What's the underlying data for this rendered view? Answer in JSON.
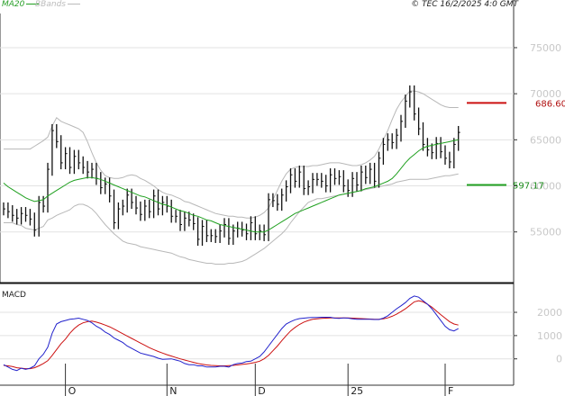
{
  "header": {
    "legend": [
      {
        "label": "MA20",
        "color": "#1fa01f"
      },
      {
        "label": "BBands",
        "color": "#bbbbbb"
      }
    ],
    "copyright": "© TEC 16/2/2025 4:0 GMT"
  },
  "chart_data": [
    {
      "type": "candlestick",
      "panel": "price",
      "ylim": [
        49500,
        79000
      ],
      "y_ticks": [
        55000,
        60000,
        65000,
        70000,
        75000
      ],
      "y_tick_labels": [
        "55000",
        "60000",
        "65000",
        "70000",
        "75000"
      ],
      "x_ticks": [
        {
          "label": "O",
          "index": 14
        },
        {
          "label": "N",
          "index": 37
        },
        {
          "label": "D",
          "index": 57
        },
        {
          "label": "25",
          "index": 78
        },
        {
          "label": "F",
          "index": 100
        }
      ],
      "grid": true,
      "series": [
        {
          "name": "MA20",
          "color": "#1fa01f"
        },
        {
          "name": "BBands",
          "color": "#bbbbbb"
        }
      ],
      "close": [
        57500,
        57200,
        56800,
        56500,
        57000,
        56800,
        56400,
        55200,
        58200,
        57800,
        61800,
        66000,
        64800,
        62500,
        63500,
        62000,
        63200,
        62500,
        62000,
        61500,
        61800,
        60800,
        59800,
        60200,
        58900,
        56000,
        57500,
        57800,
        59000,
        58200,
        57600,
        56900,
        57800,
        57200,
        58900,
        57500,
        58200,
        57800,
        56700,
        56700,
        55800,
        56500,
        56300,
        55900,
        54200,
        55600,
        54600,
        54600,
        54500,
        55100,
        55800,
        54300,
        55100,
        55400,
        55200,
        54800,
        56000,
        54800,
        55100,
        54700,
        58500,
        58400,
        58000,
        59000,
        59900,
        61200,
        60500,
        61500,
        59700,
        59900,
        60700,
        60700,
        60500,
        60000,
        61200,
        60800,
        61000,
        60000,
        59500,
        60800,
        60100,
        61500,
        60900,
        61800,
        60500,
        63000,
        64500,
        65000,
        64700,
        65500,
        67000,
        69200,
        70200,
        67800,
        66200,
        64500,
        63900,
        63600,
        64600,
        63700,
        63000,
        62600,
        64500,
        65800
      ],
      "ma20": [
        60300,
        59900,
        59600,
        59300,
        59000,
        58700,
        58500,
        58300,
        58400,
        58500,
        58900,
        59200,
        59500,
        59800,
        60100,
        60400,
        60600,
        60700,
        60800,
        60900,
        60900,
        60800,
        60700,
        60500,
        60300,
        60100,
        59900,
        59700,
        59500,
        59300,
        59100,
        58900,
        58800,
        58600,
        58400,
        58200,
        58000,
        57900,
        57700,
        57500,
        57300,
        57200,
        57000,
        56800,
        56700,
        56500,
        56300,
        56200,
        56000,
        55800,
        55700,
        55600,
        55500,
        55400,
        55300,
        55200,
        55100,
        55000,
        55000,
        55000,
        55200,
        55500,
        55800,
        56100,
        56400,
        56700,
        57000,
        57200,
        57400,
        57600,
        57800,
        58000,
        58200,
        58400,
        58600,
        58800,
        59000,
        59100,
        59200,
        59300,
        59400,
        59500,
        59700,
        59800,
        59900,
        60100,
        60300,
        60500,
        60800,
        61300,
        61900,
        62500,
        63000,
        63400,
        63800,
        64100,
        64300,
        64400,
        64500,
        64600,
        64700,
        64800,
        64900,
        65000
      ],
      "bb_upper": [
        64000,
        64000,
        64000,
        64000,
        64000,
        64000,
        64000,
        64300,
        64600,
        64900,
        65300,
        66500,
        67400,
        67000,
        66800,
        66600,
        66400,
        66200,
        65800,
        64800,
        63600,
        62500,
        61700,
        61100,
        60900,
        60800,
        60800,
        60900,
        61100,
        61200,
        61100,
        60800,
        60600,
        60300,
        60000,
        59600,
        59300,
        59100,
        59000,
        58800,
        58600,
        58300,
        58200,
        58000,
        57800,
        57600,
        57400,
        57200,
        57000,
        56900,
        56800,
        56700,
        56700,
        56600,
        56600,
        56500,
        56500,
        56600,
        56800,
        57100,
        57600,
        58500,
        59500,
        60500,
        61300,
        61800,
        62000,
        62100,
        62100,
        62100,
        62200,
        62200,
        62300,
        62400,
        62500,
        62500,
        62500,
        62400,
        62300,
        62200,
        62200,
        62300,
        62500,
        62800,
        63200,
        64000,
        65000,
        66000,
        67200,
        68300,
        69100,
        69700,
        70300,
        70300,
        70200,
        70000,
        69700,
        69400,
        69100,
        68800,
        68600,
        68500,
        68500,
        68500
      ],
      "bb_lower": [
        56000,
        56000,
        56000,
        55800,
        55700,
        55400,
        55300,
        55200,
        55400,
        55600,
        56300,
        56500,
        56800,
        57000,
        57200,
        57400,
        57800,
        58000,
        58000,
        57800,
        57500,
        57000,
        56400,
        55800,
        55300,
        54800,
        54400,
        54000,
        53800,
        53700,
        53600,
        53400,
        53300,
        53200,
        53100,
        53000,
        52900,
        52800,
        52700,
        52500,
        52300,
        52200,
        52000,
        51900,
        51800,
        51700,
        51600,
        51600,
        51500,
        51500,
        51500,
        51600,
        51600,
        51700,
        51800,
        52000,
        52300,
        52600,
        52900,
        53200,
        53600,
        54000,
        54400,
        54800,
        55300,
        56000,
        56600,
        57200,
        57700,
        58200,
        58400,
        58600,
        58600,
        58700,
        58800,
        58900,
        59000,
        59100,
        59200,
        59300,
        59400,
        59500,
        59600,
        59700,
        59800,
        59900,
        60000,
        60100,
        60200,
        60400,
        60500,
        60600,
        60700,
        60700,
        60700,
        60700,
        60700,
        60800,
        60900,
        61000,
        61100,
        61100,
        61200,
        61300
      ]
    },
    {
      "type": "line",
      "panel": "macd",
      "title": "MACD",
      "ylim": [
        -900,
        3200
      ],
      "y_ticks": [
        0,
        1000,
        2000
      ],
      "y_tick_labels": [
        "0",
        "1000",
        "2000"
      ],
      "grid": true,
      "series": [
        {
          "name": "MACD",
          "color": "#2222cc",
          "values": [
            -250,
            -350,
            -450,
            -500,
            -400,
            -450,
            -400,
            -300,
            0,
            200,
            500,
            1100,
            1500,
            1600,
            1650,
            1700,
            1720,
            1750,
            1700,
            1650,
            1550,
            1400,
            1300,
            1150,
            1050,
            900,
            800,
            700,
            550,
            450,
            350,
            250,
            200,
            150,
            100,
            30,
            -20,
            -10,
            0,
            -50,
            -100,
            -200,
            -250,
            -250,
            -300,
            -300,
            -350,
            -350,
            -350,
            -320,
            -320,
            -350,
            -250,
            -200,
            -180,
            -120,
            -100,
            0,
            100,
            300,
            550,
            800,
            1050,
            1300,
            1500,
            1600,
            1680,
            1730,
            1750,
            1770,
            1780,
            1780,
            1790,
            1790,
            1790,
            1750,
            1740,
            1760,
            1750,
            1720,
            1700,
            1700,
            1700,
            1700,
            1690,
            1690,
            1750,
            1850,
            2000,
            2150,
            2280,
            2420,
            2600,
            2700,
            2650,
            2500,
            2350,
            2150,
            1900,
            1650,
            1400,
            1250,
            1200,
            1300
          ]
        },
        {
          "name": "Signal",
          "color": "#cc1111",
          "values": [
            -280,
            -300,
            -330,
            -380,
            -400,
            -420,
            -420,
            -380,
            -300,
            -200,
            -80,
            150,
            400,
            650,
            850,
            1100,
            1300,
            1450,
            1550,
            1600,
            1620,
            1580,
            1520,
            1450,
            1380,
            1280,
            1180,
            1080,
            980,
            880,
            780,
            680,
            580,
            480,
            400,
            320,
            250,
            180,
            120,
            60,
            0,
            -50,
            -100,
            -150,
            -200,
            -230,
            -260,
            -280,
            -290,
            -300,
            -300,
            -290,
            -280,
            -260,
            -240,
            -220,
            -190,
            -150,
            -100,
            0,
            150,
            350,
            550,
            780,
            1000,
            1200,
            1350,
            1480,
            1580,
            1650,
            1700,
            1720,
            1740,
            1750,
            1760,
            1760,
            1760,
            1760,
            1760,
            1750,
            1740,
            1730,
            1720,
            1710,
            1700,
            1700,
            1720,
            1760,
            1830,
            1920,
            2030,
            2150,
            2300,
            2450,
            2500,
            2450,
            2350,
            2220,
            2060,
            1900,
            1750,
            1600,
            1500,
            1450
          ]
        }
      ]
    }
  ],
  "annotations": {
    "level_resistance": {
      "value": "686.60",
      "price": 69000,
      "color": "#cc1111"
    },
    "level_support": {
      "value": "597.17",
      "price": 60100,
      "color": "#22a022"
    }
  }
}
